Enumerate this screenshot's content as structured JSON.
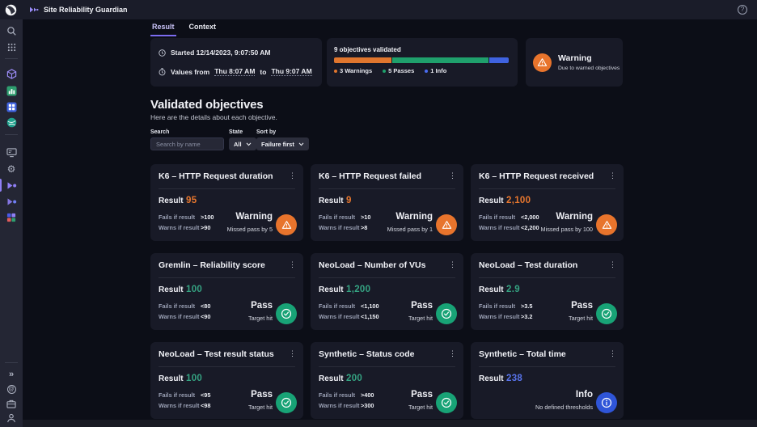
{
  "topbar": {
    "title": "Site Reliability Guardian",
    "help_glyph": "?"
  },
  "tabs": {
    "result": "Result",
    "context": "Context"
  },
  "summary": {
    "started": "Started 12/14/2023, 9:07:50 AM",
    "values_prefix": "Values from",
    "time_from": "Thu 8:07 AM",
    "to_word": "to",
    "time_to": "Thu 9:07 AM",
    "validated_title": "9 objectives validated",
    "counts": {
      "warnings": 3,
      "passes": 5,
      "info": 1,
      "total": 9
    },
    "legend": [
      {
        "label": "3 Warnings",
        "color": "#e0762e"
      },
      {
        "label": "5 Passes",
        "color": "#1fa06c"
      },
      {
        "label": "1 Info",
        "color": "#4a6cf0"
      }
    ],
    "overall": {
      "status": "Warning",
      "reason": "Due to warned objectives"
    }
  },
  "section": {
    "title": "Validated objectives",
    "subtitle": "Here are the details about each objective."
  },
  "filters": {
    "search_label": "Search",
    "search_placeholder": "Search by name",
    "state_label": "State",
    "state_value": "All",
    "sort_label": "Sort by",
    "sort_value": "Failure first"
  },
  "labels": {
    "result": "Result",
    "fails": "Fails if result",
    "warns": "Warns if result"
  },
  "colors": {
    "warning": "#e8742c",
    "pass": "#18a376",
    "info": "#2f55d8",
    "accent": "#7c6cf0"
  },
  "icons": {
    "kebab": "⋮",
    "expand": "»",
    "gear": "⚙",
    "at": "@"
  },
  "cards": [
    {
      "title": "K6 – HTTP Request duration",
      "result": "95",
      "state": "warning",
      "fails": ">100",
      "warns": ">90",
      "status": "Warning",
      "note": "Missed pass by 5"
    },
    {
      "title": "K6 – HTTP Request failed",
      "result": "9",
      "state": "warning",
      "fails": ">10",
      "warns": ">8",
      "status": "Warning",
      "note": "Missed pass by 1"
    },
    {
      "title": "K6 – HTTP Request received",
      "result": "2,100",
      "state": "warning",
      "fails": "<2,000",
      "warns": "<2,200",
      "status": "Warning",
      "note": "Missed pass by 100"
    },
    {
      "title": "Gremlin – Reliability score",
      "result": "100",
      "state": "pass",
      "fails": "<80",
      "warns": "<90",
      "status": "Pass",
      "note": "Target hit"
    },
    {
      "title": "NeoLoad – Number of VUs",
      "result": "1,200",
      "state": "pass",
      "fails": "<1,100",
      "warns": "<1,150",
      "status": "Pass",
      "note": "Target hit"
    },
    {
      "title": "NeoLoad – Test duration",
      "result": "2.9",
      "state": "pass",
      "fails": ">3.5",
      "warns": ">3.2",
      "status": "Pass",
      "note": "Target hit"
    },
    {
      "title": "NeoLoad – Test result status",
      "result": "100",
      "state": "pass",
      "fails": "<95",
      "warns": "<98",
      "status": "Pass",
      "note": "Target hit"
    },
    {
      "title": "Synthetic – Status code",
      "result": "200",
      "state": "pass",
      "fails": ">400",
      "warns": ">300",
      "status": "Pass",
      "note": "Target hit"
    },
    {
      "title": "Synthetic – Total time",
      "result": "238",
      "state": "info",
      "fails": "",
      "warns": "",
      "status": "Info",
      "note": "No defined thresholds"
    }
  ]
}
